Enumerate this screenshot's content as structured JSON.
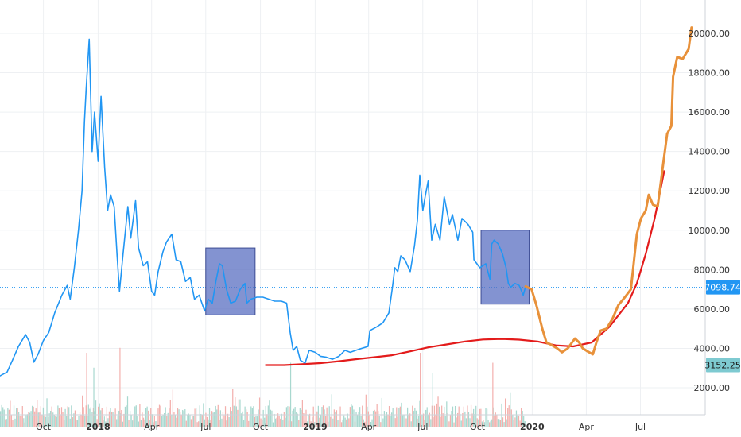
{
  "chart_data": {
    "type": "line",
    "title": "",
    "xlabel": "",
    "ylabel": "",
    "ylim": [
      1000,
      21000
    ],
    "grid": true,
    "y_ticks": [
      {
        "value": 2000,
        "label": "2000.00"
      },
      {
        "value": 4000,
        "label": "4000.00"
      },
      {
        "value": 6000,
        "label": "6000.00"
      },
      {
        "value": 8000,
        "label": "8000.00"
      },
      {
        "value": 10000,
        "label": "10000.00"
      },
      {
        "value": 12000,
        "label": "12000.00"
      },
      {
        "value": 14000,
        "label": "14000.00"
      },
      {
        "value": 16000,
        "label": "16000.00"
      },
      {
        "value": 18000,
        "label": "18000.00"
      },
      {
        "value": 20000,
        "label": "20000.00"
      }
    ],
    "x_ticks": [
      {
        "date": "2017-10-01",
        "label": "Oct",
        "bold": false
      },
      {
        "date": "2018-01-01",
        "label": "2018",
        "bold": true
      },
      {
        "date": "2018-04-01",
        "label": "Apr",
        "bold": false
      },
      {
        "date": "2018-07-01",
        "label": "Jul",
        "bold": false
      },
      {
        "date": "2018-10-01",
        "label": "Oct",
        "bold": false
      },
      {
        "date": "2019-01-01",
        "label": "2019",
        "bold": true
      },
      {
        "date": "2019-04-01",
        "label": "Apr",
        "bold": false
      },
      {
        "date": "2019-07-01",
        "label": "Jul",
        "bold": false
      },
      {
        "date": "2019-10-01",
        "label": "Oct",
        "bold": false
      },
      {
        "date": "2020-01-01",
        "label": "2020",
        "bold": true
      },
      {
        "date": "2020-04-01",
        "label": "Apr",
        "bold": false
      },
      {
        "date": "2020-07-01",
        "label": "Jul",
        "bold": false
      }
    ],
    "x_range": [
      "2017-07-20",
      "2020-10-18"
    ],
    "horizontal_lines": [
      {
        "value": 7098.74,
        "label": "7098.74",
        "style": "dotted",
        "color": "#2196f3",
        "tag_bg": "#2196f3",
        "tag_fg": "#ffffff"
      },
      {
        "value": 3152.25,
        "label": "3152.25",
        "style": "solid",
        "color": "#7ecad1",
        "tag_bg": "#7ecad1",
        "tag_fg": "#1a1a1a"
      }
    ],
    "series": [
      {
        "kind": "price",
        "color": "#2196f3",
        "points": [
          [
            "2017-07-20",
            2600
          ],
          [
            "2017-08-01",
            2800
          ],
          [
            "2017-08-10",
            3400
          ],
          [
            "2017-08-20",
            4100
          ],
          [
            "2017-09-01",
            4700
          ],
          [
            "2017-09-08",
            4300
          ],
          [
            "2017-09-15",
            3300
          ],
          [
            "2017-09-22",
            3700
          ],
          [
            "2017-10-01",
            4400
          ],
          [
            "2017-10-10",
            4800
          ],
          [
            "2017-10-20",
            5800
          ],
          [
            "2017-11-01",
            6700
          ],
          [
            "2017-11-10",
            7200
          ],
          [
            "2017-11-15",
            6500
          ],
          [
            "2017-11-22",
            8100
          ],
          [
            "2017-11-29",
            10000
          ],
          [
            "2017-12-05",
            12000
          ],
          [
            "2017-12-09",
            15500
          ],
          [
            "2017-12-12",
            17200
          ],
          [
            "2017-12-17",
            19700
          ],
          [
            "2017-12-22",
            14000
          ],
          [
            "2017-12-26",
            16000
          ],
          [
            "2018-01-01",
            13500
          ],
          [
            "2018-01-06",
            16800
          ],
          [
            "2018-01-12",
            13200
          ],
          [
            "2018-01-17",
            11000
          ],
          [
            "2018-01-22",
            11800
          ],
          [
            "2018-01-28",
            11200
          ],
          [
            "2018-02-02",
            8700
          ],
          [
            "2018-02-06",
            6900
          ],
          [
            "2018-02-12",
            8800
          ],
          [
            "2018-02-20",
            11200
          ],
          [
            "2018-02-25",
            9600
          ],
          [
            "2018-03-05",
            11500
          ],
          [
            "2018-03-10",
            9100
          ],
          [
            "2018-03-18",
            8200
          ],
          [
            "2018-03-25",
            8400
          ],
          [
            "2018-04-01",
            6900
          ],
          [
            "2018-04-06",
            6700
          ],
          [
            "2018-04-12",
            7900
          ],
          [
            "2018-04-20",
            8900
          ],
          [
            "2018-04-26",
            9400
          ],
          [
            "2018-05-05",
            9800
          ],
          [
            "2018-05-12",
            8500
          ],
          [
            "2018-05-20",
            8400
          ],
          [
            "2018-05-28",
            7400
          ],
          [
            "2018-06-05",
            7600
          ],
          [
            "2018-06-12",
            6500
          ],
          [
            "2018-06-20",
            6700
          ],
          [
            "2018-06-29",
            5900
          ],
          [
            "2018-07-05",
            6500
          ],
          [
            "2018-07-12",
            6300
          ],
          [
            "2018-07-18",
            7400
          ],
          [
            "2018-07-24",
            8300
          ],
          [
            "2018-07-29",
            8200
          ],
          [
            "2018-08-05",
            7000
          ],
          [
            "2018-08-12",
            6300
          ],
          [
            "2018-08-20",
            6400
          ],
          [
            "2018-08-28",
            7000
          ],
          [
            "2018-09-05",
            7300
          ],
          [
            "2018-09-08",
            6300
          ],
          [
            "2018-09-15",
            6500
          ],
          [
            "2018-09-25",
            6600
          ],
          [
            "2018-10-05",
            6600
          ],
          [
            "2018-10-15",
            6500
          ],
          [
            "2018-10-25",
            6400
          ],
          [
            "2018-11-05",
            6400
          ],
          [
            "2018-11-14",
            6300
          ],
          [
            "2018-11-20",
            4800
          ],
          [
            "2018-11-25",
            3900
          ],
          [
            "2018-12-01",
            4100
          ],
          [
            "2018-12-07",
            3400
          ],
          [
            "2018-12-15",
            3250
          ],
          [
            "2018-12-22",
            3900
          ],
          [
            "2019-01-01",
            3800
          ],
          [
            "2019-01-10",
            3600
          ],
          [
            "2019-01-20",
            3550
          ],
          [
            "2019-01-30",
            3450
          ],
          [
            "2019-02-10",
            3600
          ],
          [
            "2019-02-20",
            3900
          ],
          [
            "2019-03-01",
            3800
          ],
          [
            "2019-03-15",
            3950
          ],
          [
            "2019-03-31",
            4100
          ],
          [
            "2019-04-03",
            4900
          ],
          [
            "2019-04-15",
            5100
          ],
          [
            "2019-04-25",
            5300
          ],
          [
            "2019-05-05",
            5800
          ],
          [
            "2019-05-11",
            7100
          ],
          [
            "2019-05-15",
            8100
          ],
          [
            "2019-05-20",
            7900
          ],
          [
            "2019-05-25",
            8700
          ],
          [
            "2019-06-01",
            8500
          ],
          [
            "2019-06-10",
            7900
          ],
          [
            "2019-06-17",
            9200
          ],
          [
            "2019-06-22",
            10500
          ],
          [
            "2019-06-26",
            12800
          ],
          [
            "2019-07-01",
            11000
          ],
          [
            "2019-07-05",
            11700
          ],
          [
            "2019-07-10",
            12500
          ],
          [
            "2019-07-16",
            9500
          ],
          [
            "2019-07-22",
            10300
          ],
          [
            "2019-07-30",
            9500
          ],
          [
            "2019-08-06",
            11700
          ],
          [
            "2019-08-15",
            10300
          ],
          [
            "2019-08-20",
            10800
          ],
          [
            "2019-08-29",
            9500
          ],
          [
            "2019-09-05",
            10600
          ],
          [
            "2019-09-15",
            10300
          ],
          [
            "2019-09-23",
            9900
          ],
          [
            "2019-09-25",
            8500
          ],
          [
            "2019-10-05",
            8100
          ],
          [
            "2019-10-15",
            8300
          ],
          [
            "2019-10-22",
            7500
          ],
          [
            "2019-10-25",
            9300
          ],
          [
            "2019-10-29",
            9500
          ],
          [
            "2019-11-05",
            9300
          ],
          [
            "2019-11-12",
            8800
          ],
          [
            "2019-11-18",
            8100
          ],
          [
            "2019-11-22",
            7300
          ],
          [
            "2019-11-26",
            7100
          ],
          [
            "2019-12-03",
            7300
          ],
          [
            "2019-12-10",
            7200
          ],
          [
            "2019-12-17",
            6700
          ],
          [
            "2019-12-21",
            7150
          ]
        ]
      },
      {
        "kind": "forecast",
        "color": "#e8913a",
        "points": [
          [
            "2019-12-21",
            7150
          ],
          [
            "2019-12-31",
            7000
          ],
          [
            "2020-01-08",
            6200
          ],
          [
            "2020-01-18",
            5000
          ],
          [
            "2020-01-25",
            4300
          ],
          [
            "2020-02-01",
            4200
          ],
          [
            "2020-02-12",
            4000
          ],
          [
            "2020-02-20",
            3800
          ],
          [
            "2020-03-01",
            4000
          ],
          [
            "2020-03-08",
            4300
          ],
          [
            "2020-03-13",
            4500
          ],
          [
            "2020-03-20",
            4300
          ],
          [
            "2020-03-26",
            4000
          ],
          [
            "2020-04-03",
            3850
          ],
          [
            "2020-04-12",
            3700
          ],
          [
            "2020-04-18",
            4300
          ],
          [
            "2020-04-25",
            4900
          ],
          [
            "2020-05-05",
            5000
          ],
          [
            "2020-05-15",
            5500
          ],
          [
            "2020-05-25",
            6200
          ],
          [
            "2020-06-05",
            6600
          ],
          [
            "2020-06-15",
            7000
          ],
          [
            "2020-06-25",
            9800
          ],
          [
            "2020-07-02",
            10600
          ],
          [
            "2020-07-10",
            11000
          ],
          [
            "2020-07-15",
            11800
          ],
          [
            "2020-07-22",
            11300
          ],
          [
            "2020-07-30",
            11200
          ],
          [
            "2020-08-08",
            13300
          ],
          [
            "2020-08-15",
            14900
          ],
          [
            "2020-08-22",
            15300
          ],
          [
            "2020-08-25",
            17800
          ],
          [
            "2020-09-01",
            18800
          ],
          [
            "2020-09-10",
            18700
          ],
          [
            "2020-09-20",
            19200
          ],
          [
            "2020-09-25",
            20300
          ]
        ]
      },
      {
        "kind": "moving-average",
        "color": "#e31b1b",
        "points": [
          [
            "2018-10-10",
            3150
          ],
          [
            "2018-11-10",
            3150
          ],
          [
            "2018-12-10",
            3200
          ],
          [
            "2019-01-10",
            3250
          ],
          [
            "2019-02-10",
            3350
          ],
          [
            "2019-03-10",
            3450
          ],
          [
            "2019-04-10",
            3550
          ],
          [
            "2019-05-10",
            3650
          ],
          [
            "2019-06-10",
            3850
          ],
          [
            "2019-07-10",
            4050
          ],
          [
            "2019-08-10",
            4200
          ],
          [
            "2019-09-10",
            4350
          ],
          [
            "2019-10-10",
            4450
          ],
          [
            "2019-11-10",
            4480
          ],
          [
            "2019-12-10",
            4440
          ],
          [
            "2020-01-10",
            4350
          ],
          [
            "2020-02-10",
            4150
          ],
          [
            "2020-03-10",
            4100
          ],
          [
            "2020-04-10",
            4300
          ],
          [
            "2020-05-10",
            5100
          ],
          [
            "2020-06-10",
            6300
          ],
          [
            "2020-06-25",
            7300
          ],
          [
            "2020-07-10",
            8800
          ],
          [
            "2020-07-25",
            10600
          ],
          [
            "2020-08-10",
            13000
          ]
        ]
      }
    ],
    "highlight_boxes": [
      {
        "x_start": "2018-07-01",
        "x_end": "2018-09-22",
        "y_low": 5700,
        "y_high": 9100,
        "fill": "#5a6fc1",
        "stroke": "#3c4c93"
      },
      {
        "x_start": "2019-10-07",
        "x_end": "2019-12-27",
        "y_low": 6250,
        "y_high": 10000,
        "fill": "#5a6fc1",
        "stroke": "#3c4c93"
      }
    ],
    "volume": {
      "x_start": "2017-07-20",
      "x_end": "2019-12-21",
      "up_color": "#a8d8cf",
      "down_color": "#f3b0ad",
      "baseline_value": 1000,
      "bar_count": 430,
      "spikes": [
        {
          "date": "2017-12-12",
          "height": 3000
        },
        {
          "date": "2017-12-24",
          "height": 2400
        },
        {
          "date": "2018-02-06",
          "height": 3200
        },
        {
          "date": "2018-11-20",
          "height": 2600
        },
        {
          "date": "2019-06-26",
          "height": 3000
        },
        {
          "date": "2019-07-17",
          "height": 2200
        },
        {
          "date": "2019-10-26",
          "height": 2600
        }
      ]
    }
  }
}
